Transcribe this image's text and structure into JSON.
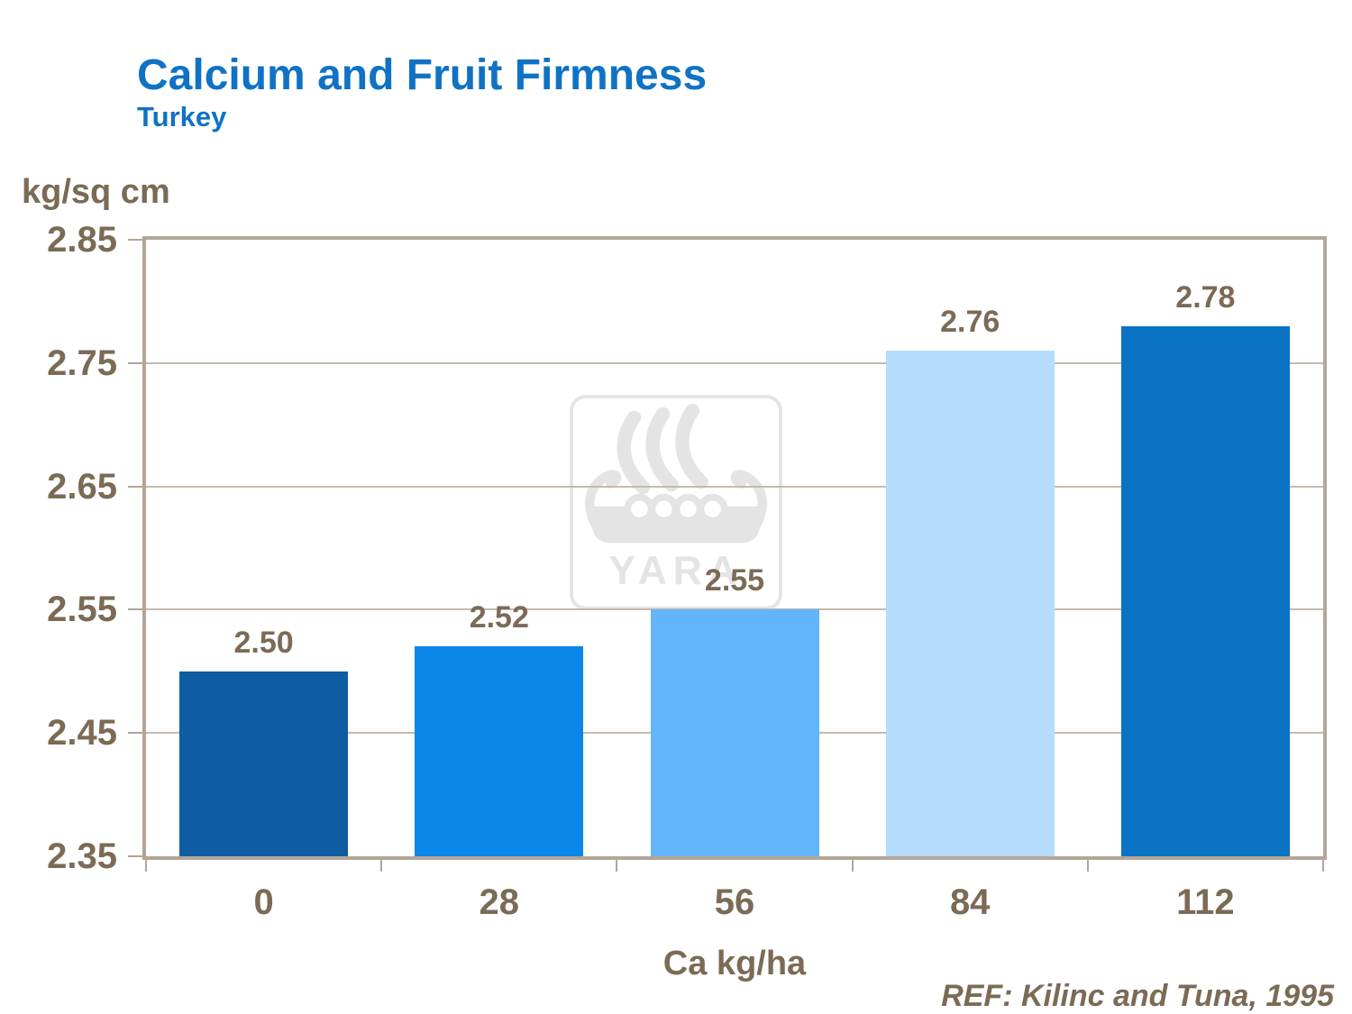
{
  "header": {
    "title": "Calcium and Fruit Firmness",
    "subtitle": "Turkey"
  },
  "chart_data": {
    "type": "bar",
    "categories": [
      "0",
      "28",
      "56",
      "84",
      "112"
    ],
    "values": [
      2.5,
      2.52,
      2.55,
      2.76,
      2.78
    ],
    "value_labels": [
      "2.50",
      "2.52",
      "2.55",
      "2.76",
      "2.78"
    ],
    "title": "Calcium and Fruit Firmness",
    "subtitle": "Turkey",
    "xlabel": "Ca kg/ha",
    "ylabel": "kg/sq cm",
    "ylim": [
      2.35,
      2.85
    ],
    "yticks": [
      2.85,
      2.75,
      2.65,
      2.55,
      2.45,
      2.35
    ],
    "ytick_labels": [
      "2.85",
      "2.75",
      "2.65",
      "2.55",
      "2.45",
      "2.35"
    ],
    "grid": true,
    "legend": false,
    "bar_colors": [
      "#0E5DA2",
      "#0A85E8",
      "#63B5F9",
      "#B6DCFB",
      "#0B73C3"
    ]
  },
  "watermark": {
    "label": "YARA"
  },
  "footer": {
    "ref": "REF: Kilinc and Tuna, 1995"
  },
  "colors": {
    "title_blue": "#0F72C5",
    "taupe_text": "#7B6B55",
    "axis": "#B2A699",
    "gridline": "#C5BAAE",
    "watermark_gray": "#E4E4E5",
    "background": "#FFFFFF"
  }
}
